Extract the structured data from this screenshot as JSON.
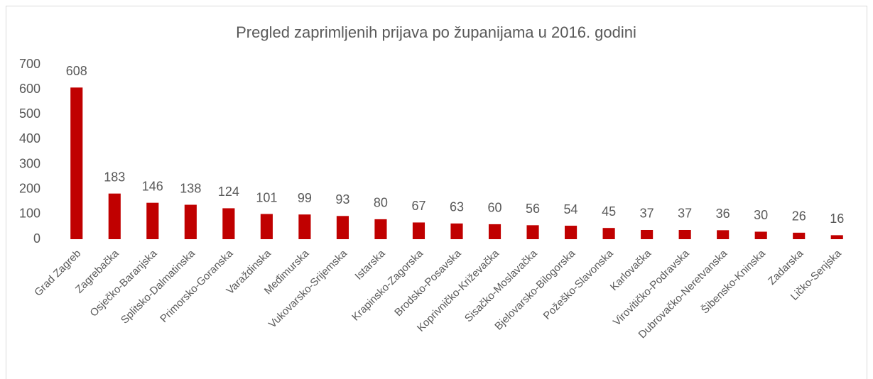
{
  "chart_data": {
    "type": "bar",
    "title": "Pregled zaprimljenih prijava po županijama u 2016. godini",
    "categories": [
      "Grad Zagreb",
      "Zagrebačka",
      "Osječko-Baranjska",
      "Splitsko-Dalmatinska",
      "Primorsko-Goranska",
      "Varaždinska",
      "Međimurska",
      "Vukovarsko-Srijemska",
      "Istarska",
      "Krapinsko-Zagorska",
      "Brodsko-Posavska",
      "Koprivničko-Križevačka",
      "Sisačko-Moslavačka",
      "Bjelovarsko-Bilogorska",
      "Požeško-Slavonska",
      "Karlovačka",
      "Virovitičko-Podravska",
      "Dubrovačko-Neretvanska",
      "Šibensko-Kninska",
      "Zadarska",
      "Ličko-Senjska"
    ],
    "values": [
      608,
      183,
      146,
      138,
      124,
      101,
      99,
      93,
      80,
      67,
      63,
      60,
      56,
      54,
      45,
      37,
      37,
      36,
      30,
      26,
      16
    ],
    "color": "#c00000",
    "ylim": [
      0,
      700
    ],
    "yticks": [
      0,
      100,
      200,
      300,
      400,
      500,
      600,
      700
    ],
    "grid": false
  }
}
